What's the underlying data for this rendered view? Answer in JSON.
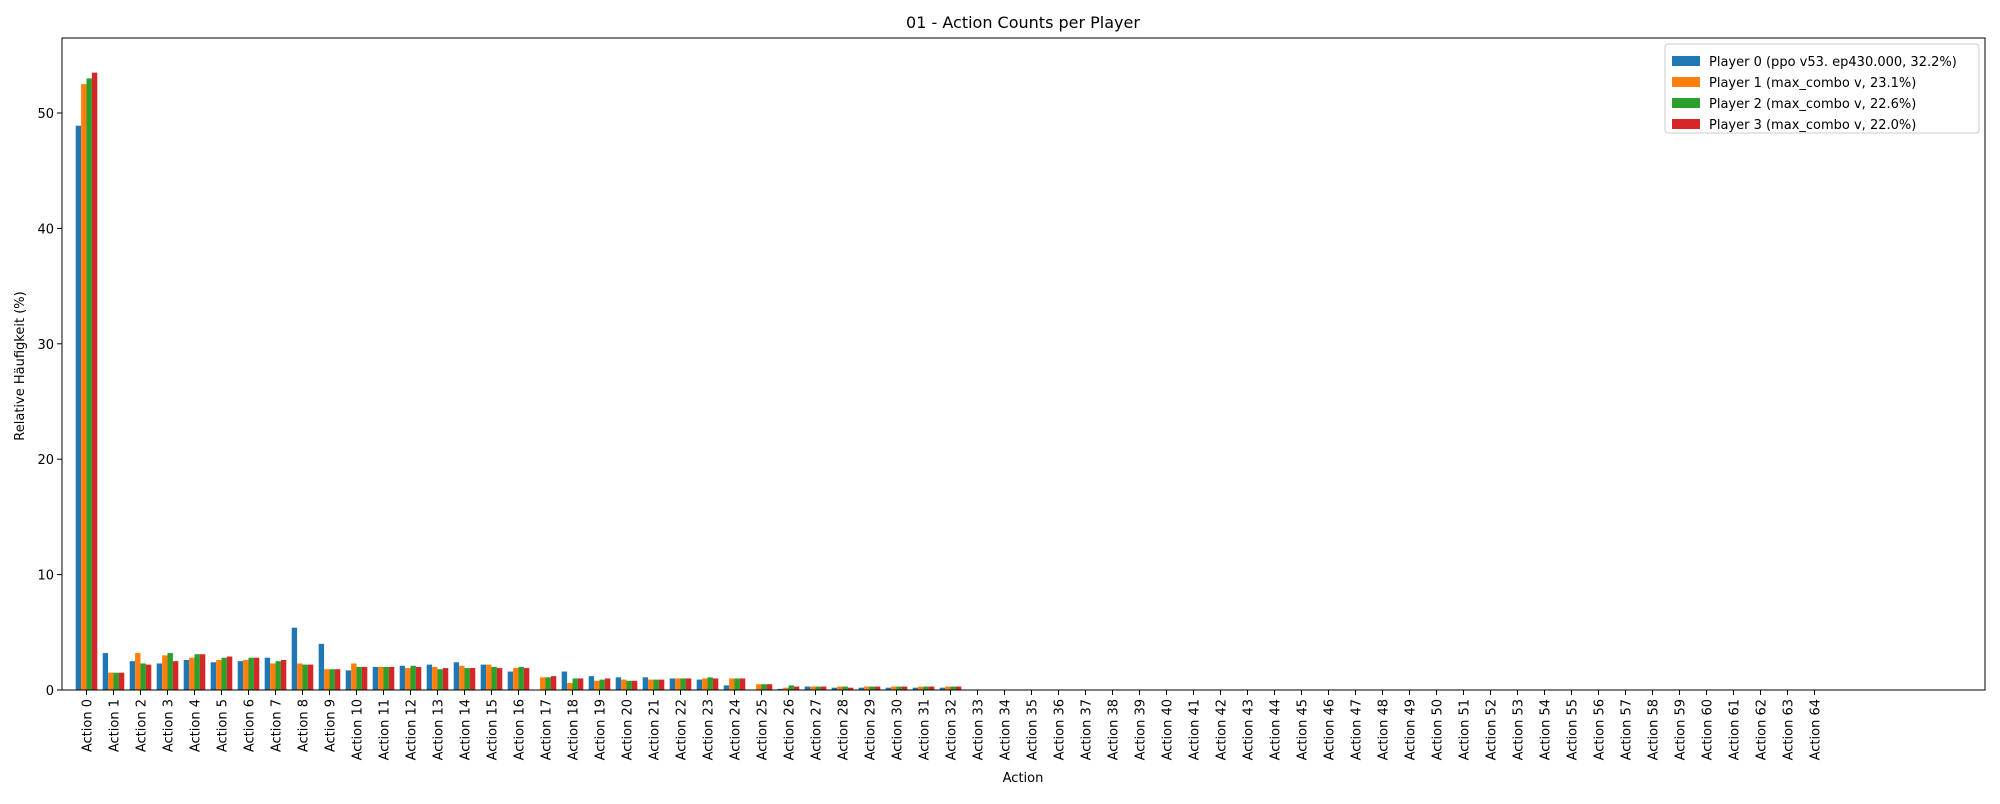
{
  "chart_data": {
    "type": "bar",
    "title": "01 - Action Counts per Player",
    "xlabel": "Action",
    "ylabel": "Relative Häufigkeit (%)",
    "ylim": [
      0,
      56.5
    ],
    "yticks": [
      0,
      10,
      20,
      30,
      40,
      50
    ],
    "grid": false,
    "legend_position": "top-right",
    "categories": [
      "Action 0",
      "Action 1",
      "Action 2",
      "Action 3",
      "Action 4",
      "Action 5",
      "Action 6",
      "Action 7",
      "Action 8",
      "Action 9",
      "Action 10",
      "Action 11",
      "Action 12",
      "Action 13",
      "Action 14",
      "Action 15",
      "Action 16",
      "Action 17",
      "Action 18",
      "Action 19",
      "Action 20",
      "Action 21",
      "Action 22",
      "Action 23",
      "Action 24",
      "Action 25",
      "Action 26",
      "Action 27",
      "Action 28",
      "Action 29",
      "Action 30",
      "Action 31",
      "Action 32",
      "Action 33",
      "Action 34",
      "Action 35",
      "Action 36",
      "Action 37",
      "Action 38",
      "Action 39",
      "Action 40",
      "Action 41",
      "Action 42",
      "Action 43",
      "Action 44",
      "Action 45",
      "Action 46",
      "Action 47",
      "Action 48",
      "Action 49",
      "Action 50",
      "Action 51",
      "Action 52",
      "Action 53",
      "Action 54",
      "Action 55",
      "Action 56",
      "Action 57",
      "Action 58",
      "Action 59",
      "Action 60",
      "Action 61",
      "Action 62",
      "Action 63",
      "Action 64"
    ],
    "series": [
      {
        "name": "Player 0 (ppo v53. ep430.000, 32.2%)",
        "color": "#1f77b4",
        "values": [
          48.9,
          3.2,
          2.5,
          2.3,
          2.6,
          2.4,
          2.5,
          2.8,
          5.4,
          4.0,
          1.7,
          2.0,
          2.1,
          2.2,
          2.4,
          2.2,
          1.6,
          0.0,
          1.6,
          1.2,
          1.1,
          1.1,
          1.0,
          0.9,
          0.4,
          0.0,
          0.1,
          0.3,
          0.2,
          0.2,
          0.2,
          0.2,
          0.2,
          0,
          0,
          0,
          0,
          0,
          0,
          0,
          0,
          0,
          0,
          0,
          0,
          0,
          0,
          0,
          0,
          0,
          0,
          0,
          0,
          0,
          0,
          0,
          0,
          0,
          0,
          0,
          0,
          0,
          0,
          0,
          0
        ]
      },
      {
        "name": "Player 1 (max_combo v, 23.1%)",
        "color": "#ff7f0e",
        "values": [
          52.5,
          1.5,
          3.2,
          3.0,
          2.8,
          2.6,
          2.6,
          2.3,
          2.3,
          1.8,
          2.3,
          2.0,
          1.9,
          2.0,
          2.1,
          2.2,
          1.9,
          1.1,
          0.6,
          0.8,
          0.9,
          0.9,
          1.0,
          1.0,
          1.0,
          0.5,
          0.2,
          0.3,
          0.3,
          0.3,
          0.3,
          0.3,
          0.3,
          0,
          0,
          0,
          0,
          0,
          0,
          0,
          0,
          0,
          0,
          0,
          0,
          0,
          0,
          0,
          0,
          0,
          0,
          0,
          0,
          0,
          0,
          0,
          0,
          0,
          0,
          0,
          0,
          0,
          0,
          0,
          0
        ]
      },
      {
        "name": "Player 2 (max_combo v, 22.6%)",
        "color": "#2ca02c",
        "values": [
          53.0,
          1.5,
          2.3,
          3.2,
          3.1,
          2.8,
          2.8,
          2.5,
          2.2,
          1.8,
          2.0,
          2.0,
          2.1,
          1.8,
          1.9,
          2.0,
          2.0,
          1.1,
          1.0,
          0.9,
          0.8,
          0.9,
          1.0,
          1.1,
          1.0,
          0.5,
          0.4,
          0.3,
          0.3,
          0.3,
          0.3,
          0.3,
          0.3,
          0,
          0,
          0,
          0,
          0,
          0,
          0,
          0,
          0,
          0,
          0,
          0,
          0,
          0,
          0,
          0,
          0,
          0,
          0,
          0,
          0,
          0,
          0,
          0,
          0,
          0,
          0,
          0,
          0,
          0,
          0,
          0
        ]
      },
      {
        "name": "Player 3 (max_combo v, 22.0%)",
        "color": "#d62728",
        "values": [
          53.5,
          1.5,
          2.2,
          2.5,
          3.1,
          2.9,
          2.8,
          2.6,
          2.2,
          1.8,
          2.0,
          2.0,
          2.0,
          1.9,
          1.9,
          1.9,
          1.9,
          1.2,
          1.0,
          1.0,
          0.8,
          0.9,
          1.0,
          1.0,
          1.0,
          0.5,
          0.3,
          0.3,
          0.2,
          0.3,
          0.3,
          0.3,
          0.3,
          0,
          0,
          0,
          0,
          0,
          0,
          0,
          0,
          0,
          0,
          0,
          0,
          0,
          0,
          0,
          0,
          0,
          0,
          0,
          0,
          0,
          0,
          0,
          0,
          0,
          0,
          0,
          0,
          0,
          0,
          0,
          0
        ]
      }
    ]
  }
}
